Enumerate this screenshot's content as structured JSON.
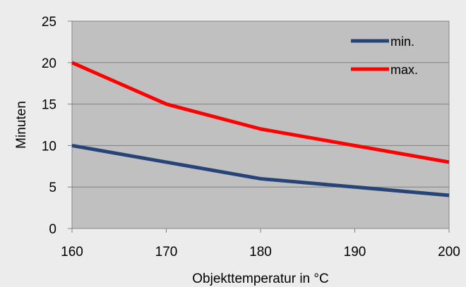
{
  "chart_data": {
    "type": "line",
    "title": "",
    "xlabel": "Objekttemperatur in °C",
    "ylabel": "Minuten",
    "x": [
      160,
      170,
      180,
      190,
      200
    ],
    "xlim": [
      160,
      200
    ],
    "ylim": [
      0,
      25
    ],
    "x_ticks": [
      160,
      170,
      180,
      190,
      200
    ],
    "y_ticks": [
      0,
      5,
      10,
      15,
      20,
      25
    ],
    "grid": "horizontal",
    "legend_position": "top-right",
    "plot_background": "#c0c0c0",
    "series": [
      {
        "name": "min.",
        "values": [
          10,
          8,
          6,
          5,
          4
        ],
        "color": "#264478"
      },
      {
        "name": "max.",
        "values": [
          20,
          15,
          12,
          10,
          8
        ],
        "color": "#ff0000"
      }
    ]
  }
}
